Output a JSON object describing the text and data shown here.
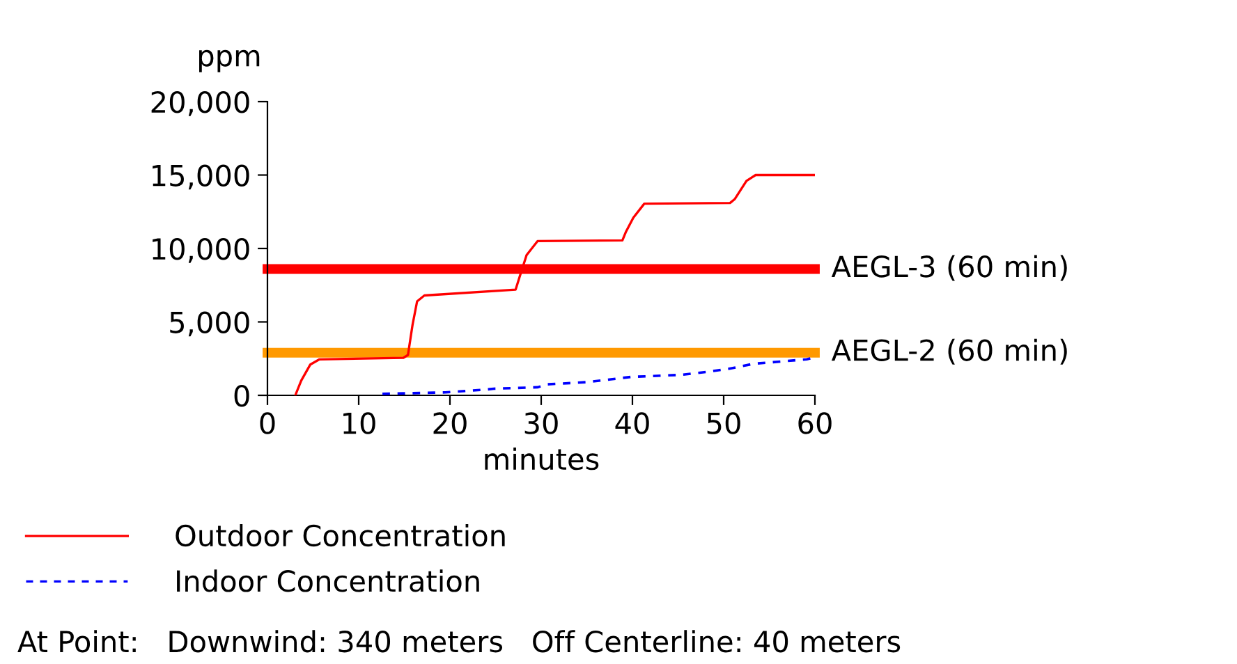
{
  "chart_data": {
    "type": "line",
    "ylabel": "ppm",
    "xlabel": "minutes",
    "xlim": [
      0,
      60
    ],
    "xticks": [
      0,
      10,
      20,
      30,
      40,
      50,
      60
    ],
    "ylim": [
      0,
      20000
    ],
    "yticks": [
      {
        "value": 0,
        "label": "0"
      },
      {
        "value": 5000,
        "label": "5,000"
      },
      {
        "value": 10000,
        "label": "10,000"
      },
      {
        "value": 15000,
        "label": "15,000"
      },
      {
        "value": 20000,
        "label": "20,000"
      }
    ],
    "grid": false,
    "legend": "bottom",
    "marker": "none",
    "series": [
      {
        "name": "Outdoor Concentration",
        "color": "#ff0000",
        "line_style": "solid",
        "x": [
          3.05,
          3.7,
          4.7,
          5.7,
          14.9,
          15.4,
          15.9,
          16.4,
          17.2,
          27.2,
          27.6,
          28.4,
          29.6,
          38.9,
          39.3,
          40.1,
          41.3,
          50.7,
          51.2,
          52.5,
          53.5,
          60
        ],
        "values": [
          0,
          1000,
          2100,
          2450,
          2550,
          2750,
          4800,
          6400,
          6800,
          7200,
          8000,
          9550,
          10500,
          10550,
          11150,
          12100,
          13050,
          13100,
          13350,
          14600,
          15000,
          15000
        ]
      },
      {
        "name": "Indoor Concentration",
        "color": "#0000ff",
        "line_style": "dashed",
        "x": [
          12.6,
          19.5,
          24,
          24.8,
          29.6,
          30.7,
          35,
          39.8,
          45.4,
          48.2,
          50.5,
          53.3,
          59.1,
          60
        ],
        "values": [
          100,
          200,
          400,
          450,
          550,
          750,
          900,
          1250,
          1400,
          1600,
          1800,
          2150,
          2450,
          2600
        ]
      }
    ],
    "ref_lines": [
      {
        "axis": "y",
        "value": 8600,
        "label": "AEGL-3 (60 min)",
        "color": "#ff0000"
      },
      {
        "axis": "y",
        "value": 2900,
        "label": "AEGL-2 (60 min)",
        "color": "#ff9900"
      }
    ],
    "annotations": [
      "At Point:   Downwind: 340 meters   Off Centerline: 40 meters"
    ]
  }
}
